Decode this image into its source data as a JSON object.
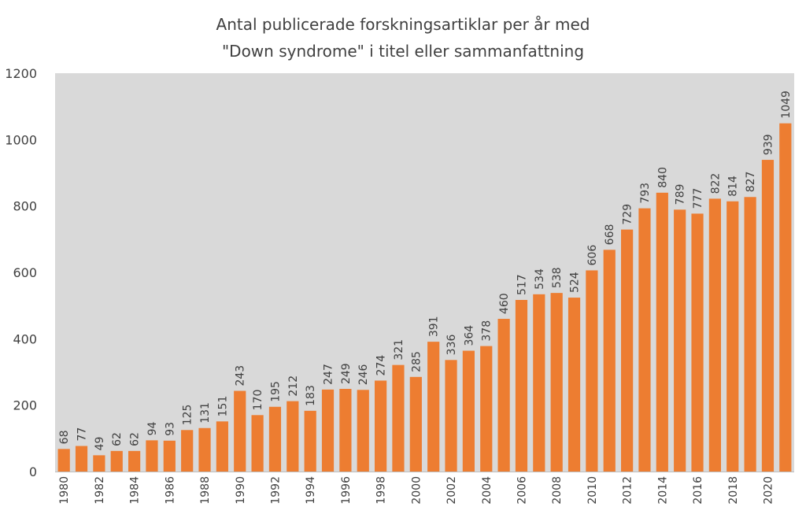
{
  "chart_data": {
    "type": "bar",
    "title_lines": [
      "Antal publicerade forskningsartiklar per år med",
      "\"Down syndrome\" i titel eller sammanfattning"
    ],
    "xlabel": "",
    "ylabel": "",
    "ylim": [
      0,
      1200
    ],
    "yticks": [
      0,
      200,
      400,
      600,
      800,
      1000,
      1200
    ],
    "categories": [
      "1980",
      "1981",
      "1982",
      "1983",
      "1984",
      "1985",
      "1986",
      "1987",
      "1988",
      "1989",
      "1990",
      "1991",
      "1992",
      "1993",
      "1994",
      "1995",
      "1996",
      "1997",
      "1998",
      "1999",
      "2000",
      "2001",
      "2002",
      "2003",
      "2004",
      "2005",
      "2006",
      "2007",
      "2008",
      "2009",
      "2010",
      "2011",
      "2012",
      "2013",
      "2014",
      "2015",
      "2016",
      "2017",
      "2018",
      "2019",
      "2020",
      "2021"
    ],
    "xtick_labels": [
      "1980",
      "1982",
      "1984",
      "1986",
      "1988",
      "1990",
      "1992",
      "1994",
      "1996",
      "1998",
      "2000",
      "2002",
      "2004",
      "2006",
      "2008",
      "2010",
      "2012",
      "2014",
      "2016",
      "2018",
      "2020"
    ],
    "values": [
      68,
      77,
      49,
      62,
      62,
      94,
      93,
      125,
      131,
      151,
      243,
      170,
      195,
      212,
      183,
      247,
      249,
      246,
      274,
      321,
      285,
      391,
      336,
      364,
      378,
      460,
      517,
      534,
      538,
      524,
      606,
      668,
      729,
      793,
      840,
      789,
      777,
      822,
      814,
      827,
      939,
      1049
    ],
    "data_labels": [
      "68",
      "77",
      "49",
      "62",
      "62",
      "94",
      "93",
      "125",
      "131",
      "151",
      "243",
      "170",
      "195",
      "212",
      "183",
      "247",
      "249",
      "246",
      "274",
      "321",
      "285",
      "391",
      "336",
      "364",
      "378",
      "460",
      "517",
      "534",
      "538",
      "524",
      "606",
      "668",
      "729",
      "793",
      "840",
      "789",
      "777",
      "822",
      "814",
      "827",
      "939",
      "1049"
    ],
    "grid": false,
    "legend": "none",
    "colors": {
      "bar": "#ED7D31",
      "plot_background": "#D9D9D9",
      "text": "#404040"
    }
  }
}
